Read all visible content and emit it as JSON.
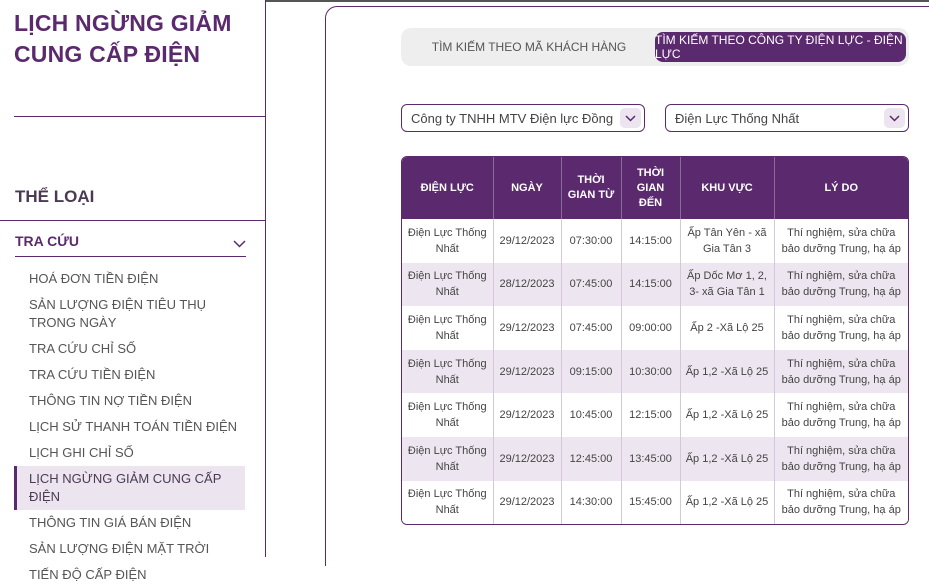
{
  "page": {
    "title": "LỊCH NGỪNG GIẢM CUNG CẤP ĐIỆN"
  },
  "sidebar": {
    "category_heading": "THỂ LOẠI",
    "section_label": "TRA CỨU",
    "items": [
      {
        "label": "HOÁ ĐƠN TIỀN ĐIỆN"
      },
      {
        "label": "SẢN LƯỢNG ĐIỆN TIÊU THỤ TRONG NGÀY"
      },
      {
        "label": "TRA CỨU CHỈ SỐ"
      },
      {
        "label": "TRA CỨU TIỀN ĐIỆN"
      },
      {
        "label": "THÔNG TIN NỢ TIỀN ĐIỆN"
      },
      {
        "label": "LỊCH SỬ THANH TOÁN TIỀN ĐIỆN"
      },
      {
        "label": "LỊCH GHI CHỈ SỐ"
      },
      {
        "label": "LỊCH NGỪNG GIẢM CUNG CẤP ĐIỆN"
      },
      {
        "label": "THÔNG TIN GIÁ BÁN ĐIỆN"
      },
      {
        "label": "SẢN LƯỢNG ĐIỆN MẶT TRỜI"
      },
      {
        "label": "TIẾN ĐỘ CẤP ĐIỆN"
      }
    ]
  },
  "tabs": [
    {
      "label": "TÌM KIẾM THEO MÃ KHÁCH HÀNG",
      "active": false
    },
    {
      "label": "TÌM KIẾM THEO CÔNG TY ĐIỆN LỰC - ĐIỆN LỰC",
      "active": true
    }
  ],
  "filters": {
    "company": "Công ty TNHH MTV Điện lực Đồng Nai",
    "branch": "Điện Lực Thống Nhất"
  },
  "table": {
    "headers": [
      "ĐIỆN LỰC",
      "NGÀY",
      "THỜI GIAN TỪ",
      "THỜI GIAN ĐẾN",
      "KHU VỰC",
      "LÝ DO"
    ],
    "rows": [
      [
        "Điện Lực Thống Nhất",
        "29/12/2023",
        "07:30:00",
        "14:15:00",
        "Ấp Tân Yên - xã Gia Tân 3",
        "Thí nghiệm, sửa chữa bảo dưỡng Trung, hạ áp"
      ],
      [
        "Điện Lực Thống Nhất",
        "28/12/2023",
        "07:45:00",
        "14:15:00",
        "Ấp Dốc Mơ 1, 2, 3- xã Gia Tân 1",
        "Thí nghiệm, sửa chữa bảo dưỡng Trung, hạ áp"
      ],
      [
        "Điện Lực Thống Nhất",
        "29/12/2023",
        "07:45:00",
        "09:00:00",
        "Ấp 2 -Xã Lộ 25",
        "Thí nghiệm, sửa chữa bảo dưỡng Trung, hạ áp"
      ],
      [
        "Điện Lực Thống Nhất",
        "29/12/2023",
        "09:15:00",
        "10:30:00",
        "Ấp 1,2 -Xã Lộ 25",
        "Thí nghiệm, sửa chữa bảo dưỡng Trung, hạ áp"
      ],
      [
        "Điện Lực Thống Nhất",
        "29/12/2023",
        "10:45:00",
        "12:15:00",
        "Ấp 1,2 -Xã Lộ 25",
        "Thí nghiệm, sửa chữa bảo dưỡng Trung, hạ áp"
      ],
      [
        "Điện Lực Thống Nhất",
        "29/12/2023",
        "12:45:00",
        "13:45:00",
        "Ấp 1,2 -Xã Lộ 25",
        "Thí nghiệm, sửa chữa bảo dưỡng Trung, hạ áp"
      ],
      [
        "Điện Lực Thống Nhất",
        "29/12/2023",
        "14:30:00",
        "15:45:00",
        "Ấp 1,2 -Xã Lộ 25",
        "Thí nghiệm, sửa chữa bảo dưỡng Trung, hạ áp"
      ]
    ]
  },
  "colors": {
    "brand": "#5b2a6e",
    "row_alt": "#ede6f0",
    "active_item_bg": "#ece4ef"
  },
  "icons": {
    "section_toggle": "chevron-down-icon",
    "select_arrow": "chevron-down-icon"
  }
}
